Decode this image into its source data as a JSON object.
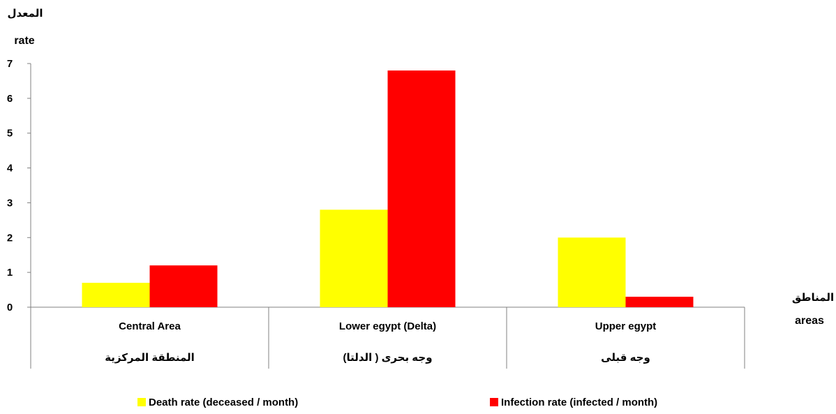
{
  "chart_data": {
    "type": "bar",
    "ylabel_ar": "المعدل",
    "ylabel": "rate",
    "xlabel_ar": "المناطق",
    "xlabel": "areas",
    "ylim": [
      0,
      7
    ],
    "yticks": [
      "0",
      "1",
      "2",
      "3",
      "4",
      "5",
      "6",
      "7"
    ],
    "categories": [
      {
        "en": "Central Area",
        "ar": "المنطقة المركزية"
      },
      {
        "en": "Lower egypt  (Delta)",
        "ar": "وجه بحرى ( الدلتا)"
      },
      {
        "en": "Upper egypt",
        "ar": "وجه قبلى"
      }
    ],
    "series": [
      {
        "name": "Death rate (deceased / month)",
        "color": "#ffff00",
        "values": [
          0.7,
          2.8,
          2.0
        ]
      },
      {
        "name": "Infection rate (infected / month)",
        "color": "#ff0000",
        "values": [
          1.2,
          6.8,
          0.3
        ]
      }
    ],
    "legend_position": "bottom",
    "grid": false
  }
}
